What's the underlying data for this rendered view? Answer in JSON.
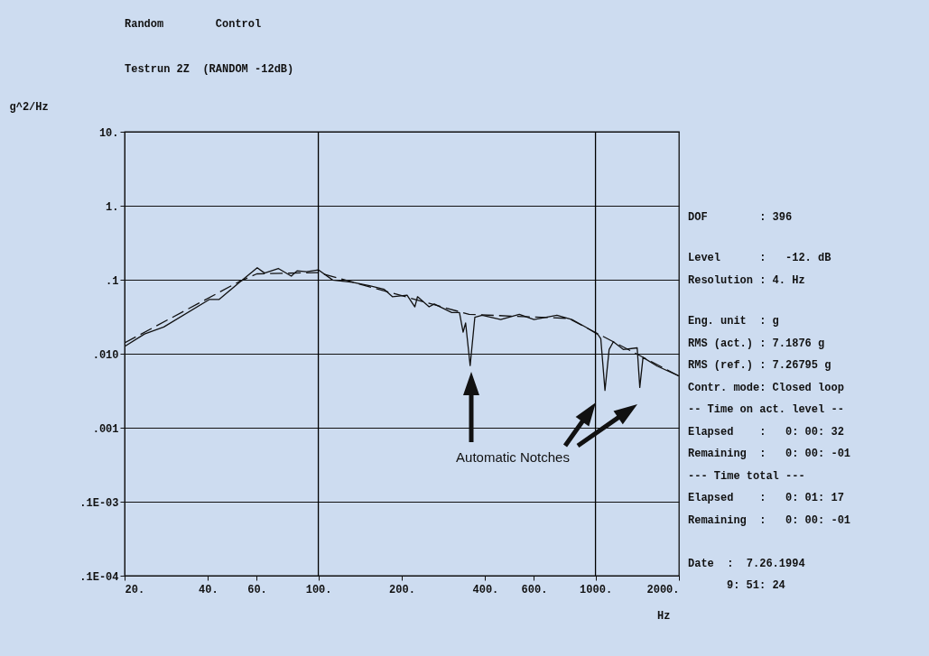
{
  "chart_data": {
    "type": "line",
    "title": "Random        Control",
    "subtitle": "Testrun 2Z  (RANDOM -12dB)",
    "xlabel": "Hz",
    "ylabel": "g^2/Hz",
    "log": "xy",
    "grid": "y",
    "marker": "none",
    "xlim": [
      20,
      2000
    ],
    "ylim": [
      1e-05,
      10
    ],
    "xticks": [
      {
        "value": 20,
        "label": "20."
      },
      {
        "value": 40,
        "label": "40."
      },
      {
        "value": 60,
        "label": "60."
      },
      {
        "value": 100,
        "label": "100."
      },
      {
        "value": 200,
        "label": "200."
      },
      {
        "value": 400,
        "label": "400."
      },
      {
        "value": 600,
        "label": "600."
      },
      {
        "value": 1000,
        "label": "1000."
      },
      {
        "value": 2000,
        "label": "2000."
      }
    ],
    "yticks": [
      {
        "value": 10,
        "label": "10."
      },
      {
        "value": 1,
        "label": "1."
      },
      {
        "value": 0.1,
        "label": ".1"
      },
      {
        "value": 0.01,
        "label": ".010"
      },
      {
        "value": 0.001,
        "label": ".001"
      },
      {
        "value": 0.0001,
        "label": ".1E-03"
      },
      {
        "value": 1e-05,
        "label": ".1E-04"
      }
    ],
    "ref_lines": [
      {
        "axis": "x",
        "value": 100,
        "color": "#000000"
      },
      {
        "axis": "x",
        "value": 1000,
        "color": "#000000"
      }
    ],
    "series": [
      {
        "color": "#111111",
        "line_style": "solid",
        "x": [
          20,
          23.6,
          27.7,
          40.4,
          43.8,
          51.9,
          60.2,
          64,
          71.7,
          79.9,
          83.8,
          90.6,
          100,
          112.7,
          133,
          153,
          173,
          185,
          209,
          223,
          228,
          251,
          262,
          303,
          323,
          333,
          340,
          353,
          367,
          390,
          455,
          531,
          600,
          726,
          822,
          928,
          1023,
          1045,
          1082,
          1120,
          1160,
          1260,
          1414,
          1445,
          1484,
          1670,
          2000
        ],
        "values": [
          0.0125,
          0.0185,
          0.023,
          0.054,
          0.054,
          0.092,
          0.145,
          0.123,
          0.142,
          0.112,
          0.132,
          0.128,
          0.136,
          0.099,
          0.092,
          0.083,
          0.074,
          0.059,
          0.062,
          0.043,
          0.059,
          0.043,
          0.047,
          0.036,
          0.036,
          0.0196,
          0.026,
          0.0069,
          0.031,
          0.033,
          0.029,
          0.034,
          0.029,
          0.033,
          0.029,
          0.0226,
          0.018,
          0.016,
          0.0032,
          0.0114,
          0.0145,
          0.0114,
          0.012,
          0.0035,
          0.0089,
          0.0068,
          0.005
        ]
      },
      {
        "color": "#111111",
        "line_style": "dashed",
        "x": [
          20,
          52,
          60,
          100,
          350,
          800,
          2000
        ],
        "values": [
          0.014,
          0.095,
          0.12,
          0.125,
          0.034,
          0.03,
          0.005
        ]
      }
    ],
    "annotations": [
      "Automatic Notches",
      "DOF        : 396",
      "Level      :   -12. dB",
      "Resolution : 4. Hz",
      "Eng. unit  : g",
      "RMS (act.) : 7.1876 g",
      "RMS (ref.) : 7.26795 g",
      "Contr. mode: Closed loop",
      "-- Time on act. level --",
      "Elapsed    :   0: 00: 32",
      "Remaining  :   0: 00: -01",
      "--- Time total ---",
      "Elapsed    :   0: 01: 17",
      "Remaining  :   0: 00: -01",
      "Date  :  7.26.1994",
      "9: 51: 24"
    ]
  }
}
